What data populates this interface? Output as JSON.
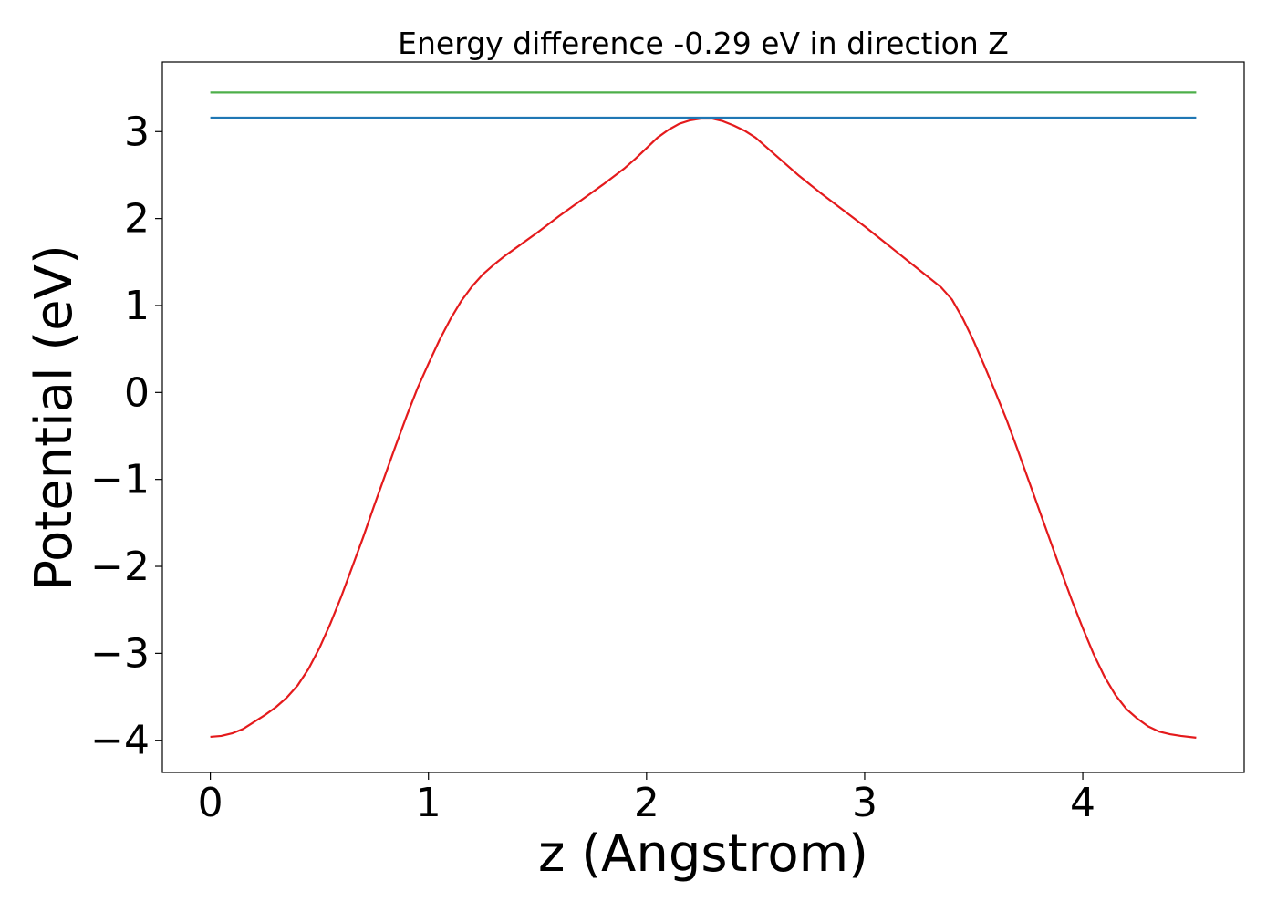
{
  "chart_data": {
    "type": "line",
    "title": "Energy difference -0.29 eV in direction Z",
    "xlabel": "z (Angstrom)",
    "ylabel": "Potential (eV)",
    "xlim": [
      -0.22,
      4.74
    ],
    "ylim": [
      -4.37,
      3.8
    ],
    "xticks": [
      0,
      1,
      2,
      3,
      4
    ],
    "yticks": [
      -4,
      -3,
      -2,
      -1,
      0,
      1,
      2,
      3
    ],
    "xtick_labels": [
      "0",
      "1",
      "2",
      "3",
      "4"
    ],
    "ytick_labels": [
      "−4",
      "−3",
      "−2",
      "−1",
      "0",
      "1",
      "2",
      "3"
    ],
    "grid": false,
    "series": [
      {
        "color": "#e41a1c",
        "x": [
          0,
          0.05,
          0.1,
          0.15,
          0.2,
          0.25,
          0.3,
          0.35,
          0.4,
          0.45,
          0.5,
          0.55,
          0.6,
          0.65,
          0.7,
          0.75,
          0.8,
          0.85,
          0.9,
          0.95,
          1.0,
          1.05,
          1.1,
          1.15,
          1.2,
          1.25,
          1.3,
          1.35,
          1.4,
          1.5,
          1.6,
          1.7,
          1.8,
          1.9,
          1.95,
          2.0,
          2.05,
          2.1,
          2.15,
          2.2,
          2.25,
          2.3,
          2.35,
          2.4,
          2.45,
          2.5,
          2.55,
          2.6,
          2.7,
          2.8,
          2.9,
          3.0,
          3.05,
          3.1,
          3.15,
          3.2,
          3.25,
          3.3,
          3.35,
          3.4,
          3.45,
          3.5,
          3.55,
          3.6,
          3.65,
          3.7,
          3.75,
          3.8,
          3.85,
          3.9,
          3.95,
          4.0,
          4.05,
          4.1,
          4.15,
          4.2,
          4.25,
          4.3,
          4.35,
          4.4,
          4.45,
          4.52
        ],
        "y": [
          -3.96,
          -3.95,
          -3.92,
          -3.87,
          -3.79,
          -3.71,
          -3.62,
          -3.51,
          -3.37,
          -3.18,
          -2.94,
          -2.66,
          -2.35,
          -2.01,
          -1.67,
          -1.31,
          -0.96,
          -0.61,
          -0.27,
          0.05,
          0.33,
          0.6,
          0.84,
          1.05,
          1.22,
          1.36,
          1.47,
          1.57,
          1.66,
          1.84,
          2.03,
          2.21,
          2.39,
          2.58,
          2.69,
          2.81,
          2.93,
          3.02,
          3.09,
          3.13,
          3.15,
          3.15,
          3.12,
          3.07,
          3.01,
          2.93,
          2.82,
          2.71,
          2.49,
          2.29,
          2.1,
          1.91,
          1.81,
          1.71,
          1.61,
          1.51,
          1.41,
          1.31,
          1.21,
          1.07,
          0.85,
          0.59,
          0.3,
          0.0,
          -0.31,
          -0.65,
          -1.0,
          -1.35,
          -1.7,
          -2.05,
          -2.39,
          -2.71,
          -3.01,
          -3.27,
          -3.48,
          -3.64,
          -3.75,
          -3.84,
          -3.9,
          -3.93,
          -3.95,
          -3.97
        ]
      },
      {
        "color": "#1f77b4",
        "x": [
          0,
          4.52
        ],
        "y": [
          3.16,
          3.16
        ]
      },
      {
        "color": "#4daf4a",
        "x": [
          0,
          4.52
        ],
        "y": [
          3.45,
          3.45
        ]
      }
    ]
  }
}
